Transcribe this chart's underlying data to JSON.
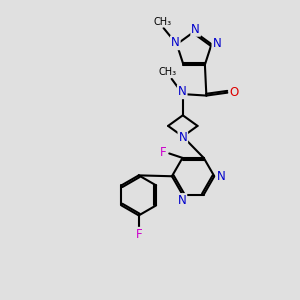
{
  "bg_color": "#e0e0e0",
  "atom_colors": {
    "C": "#000000",
    "N": "#0000cc",
    "O": "#dd0000",
    "F": "#cc00cc"
  },
  "bond_lw": 1.5,
  "font_size": 8.5,
  "figsize": [
    3.0,
    3.0
  ],
  "dpi": 100
}
